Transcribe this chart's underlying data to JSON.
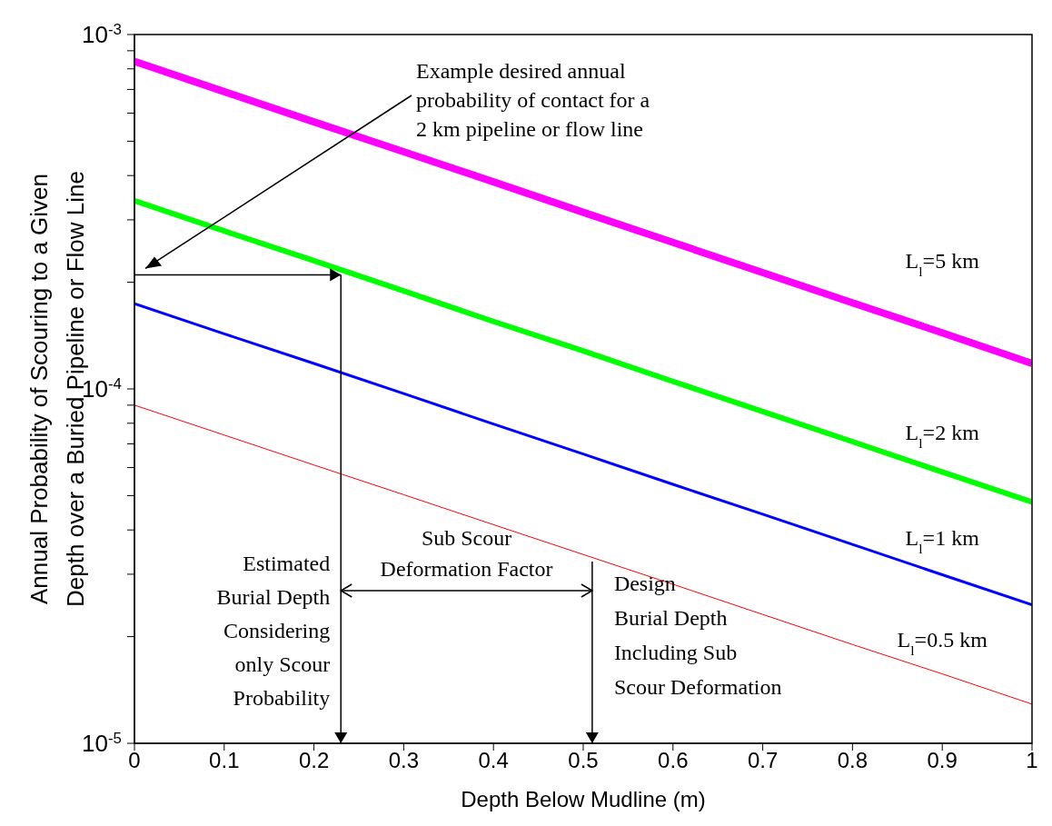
{
  "chart_data": {
    "type": "line",
    "xlabel": "Depth Below Mudline (m)",
    "ylabel": "Annual Probability of Scouring to a Given\nDepth over a Buried Pipeline or Flow Line",
    "x": [
      0,
      0.1,
      0.2,
      0.3,
      0.4,
      0.5,
      0.6,
      0.7,
      0.8,
      0.9,
      1
    ],
    "series": [
      {
        "name": "L$_{l}$=5 km",
        "color": "#ff00ff",
        "values": [
          0.00084,
          0.00069,
          0.000567,
          0.000467,
          0.000384,
          0.000315,
          0.000259,
          0.000213,
          0.000175,
          0.000144,
          0.000118
        ]
      },
      {
        "name": "L$_{l}$=2 km",
        "color": "#00ff00",
        "values": [
          0.00034,
          0.000279,
          0.00023,
          0.000189,
          0.000155,
          0.000128,
          0.000105,
          8.63e-05,
          7.1e-05,
          5.83e-05,
          4.8e-05
        ]
      },
      {
        "name": "L$_{l}$=1 km",
        "color": "#0000ff",
        "values": [
          0.000174,
          0.000143,
          0.000118,
          9.7e-05,
          7.96e-05,
          6.55e-05,
          5.38e-05,
          4.43e-05,
          3.64e-05,
          2.99e-05,
          2.46e-05
        ]
      },
      {
        "name": "L$_{l}$=0.5 km",
        "color": "#ff0000",
        "values": [
          9e-05,
          7.41e-05,
          6.1e-05,
          5.03e-05,
          4.14e-05,
          3.41e-05,
          2.81e-05,
          2.31e-05,
          1.9e-05,
          1.57e-05,
          1.29e-05
        ]
      }
    ],
    "xlim": [
      0,
      1
    ],
    "xticks": [
      0,
      0.1,
      0.2,
      0.3,
      0.4,
      0.5,
      0.6,
      0.7,
      0.8,
      0.9,
      1
    ],
    "ylim": [
      1e-05,
      0.001
    ],
    "yticks": [
      {
        "value": 1e-05,
        "label": "10$^{-5}$"
      },
      {
        "value": 2e-05,
        "label": null
      },
      {
        "value": 3e-05,
        "label": null
      },
      {
        "value": 4e-05,
        "label": null
      },
      {
        "value": 5e-05,
        "label": null
      },
      {
        "value": 6e-05,
        "label": null
      },
      {
        "value": 7e-05,
        "label": null
      },
      {
        "value": 8e-05,
        "label": null
      },
      {
        "value": 9e-05,
        "label": null
      },
      {
        "value": 0.0001,
        "label": "10$^{-4}$"
      },
      {
        "value": 0.0002,
        "label": null
      },
      {
        "value": 0.0003,
        "label": null
      },
      {
        "value": 0.0004,
        "label": null
      },
      {
        "value": 0.0005,
        "label": null
      },
      {
        "value": 0.0006,
        "label": null
      },
      {
        "value": 0.0007,
        "label": null
      },
      {
        "value": 0.0008,
        "label": null
      },
      {
        "value": 0.0009,
        "label": null
      },
      {
        "value": 0.001,
        "label": "10$^{-3}$"
      }
    ],
    "log": "y",
    "marker": "none",
    "line_style": "solid",
    "annotations": [
      "Example desired annual\nprobability of contact for a\n2 km pipeline or flow line",
      "Estimated\nBurial Depth\nConsidering\nonly Scour\nProbability",
      "Sub Scour\nDeformation Factor",
      "Design\nBurial Depth\nIncluding Sub\nScour Deformation"
    ]
  }
}
